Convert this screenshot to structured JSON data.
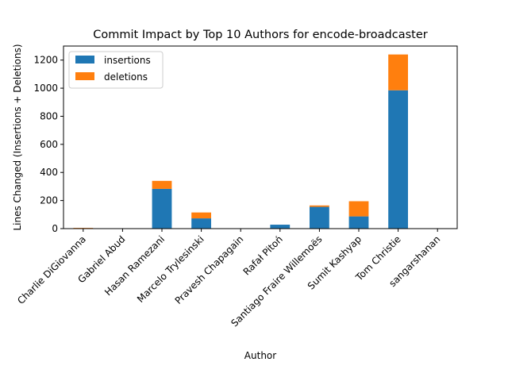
{
  "chart_data": {
    "type": "bar",
    "stacked": true,
    "title": "Commit Impact by Top 10 Authors for encode-broadcaster",
    "xlabel": "Author",
    "ylabel": "Lines Changed (Insertions + Deletions)",
    "ylim": [
      0,
      1300
    ],
    "yticks": [
      0,
      200,
      400,
      600,
      800,
      1000,
      1200
    ],
    "grid": false,
    "legend_position": "top-left",
    "categories": [
      "Charlie DiGiovanna",
      "Gabriel Abud",
      "Hasan Ramezani",
      "Marcelo Trylesinski",
      "Pravesh Chapagain",
      "Rafał Pitoń",
      "Santiago Fraire Willemoës",
      "Sumit Kashyap",
      "Tom Christie",
      "sangarshanan"
    ],
    "series": [
      {
        "name": "insertions",
        "color": "#1f77b4",
        "values": [
          2,
          0,
          283,
          73,
          0,
          28,
          155,
          87,
          985,
          0
        ]
      },
      {
        "name": "deletions",
        "color": "#ff7f0e",
        "values": [
          3,
          0,
          57,
          42,
          0,
          0,
          10,
          108,
          255,
          0
        ]
      }
    ]
  }
}
